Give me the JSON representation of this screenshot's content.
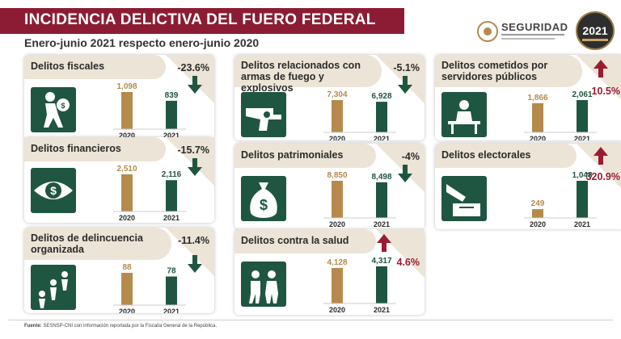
{
  "header": {
    "title": "INCIDENCIA DELICTIVA DEL FUERO FEDERAL",
    "subtitle": "Enero-junio 2021 respecto enero-junio 2020",
    "logo_name": "SEGURIDAD",
    "logo_year": "2021"
  },
  "colors": {
    "bar_2020": "#b58a4c",
    "bar_2021": "#1f5641",
    "title_bg": "#8c1c33",
    "arrow_down": "#1f5641",
    "arrow_up": "#9b1b30"
  },
  "footer": {
    "source_label": "Fuente:",
    "source_text": "SESNSP-CNI con información reportada por la Fiscalía General de la República."
  },
  "chart_data": [
    {
      "type": "bar",
      "title": "Delitos fiscales",
      "change": "-23.6%",
      "direction": "down",
      "icon": "thief-icon",
      "categories": [
        "2020",
        "2021"
      ],
      "values": [
        1098,
        839
      ],
      "labels": [
        "1,098",
        "839"
      ]
    },
    {
      "type": "bar",
      "title": "Delitos financieros",
      "change": "-15.7%",
      "direction": "down",
      "icon": "money-eye-icon",
      "categories": [
        "2020",
        "2021"
      ],
      "values": [
        2510,
        2116
      ],
      "labels": [
        "2,510",
        "2,116"
      ]
    },
    {
      "type": "bar",
      "title": "Delitos de delincuencia organizada",
      "change": "-11.4%",
      "direction": "down",
      "icon": "organized-crime-icon",
      "categories": [
        "2020",
        "2021"
      ],
      "values": [
        88,
        78
      ],
      "labels": [
        "88",
        "78"
      ]
    },
    {
      "type": "bar",
      "title": "Delitos relacionados con armas de fuego y explosivos",
      "change": "-5.1%",
      "direction": "down",
      "icon": "revolver-icon",
      "categories": [
        "2020",
        "2021"
      ],
      "values": [
        7304,
        6928
      ],
      "labels": [
        "7,304",
        "6,928"
      ]
    },
    {
      "type": "bar",
      "title": "Delitos patrimoniales",
      "change": "-4%",
      "direction": "down",
      "icon": "money-bag-icon",
      "categories": [
        "2020",
        "2021"
      ],
      "values": [
        8850,
        8498
      ],
      "labels": [
        "8,850",
        "8,498"
      ]
    },
    {
      "type": "bar",
      "title": "Delitos contra la salud",
      "change": "4.6%",
      "direction": "up",
      "icon": "health-icon",
      "categories": [
        "2020",
        "2021"
      ],
      "values": [
        4128,
        4317
      ],
      "labels": [
        "4,128",
        "4,317"
      ]
    },
    {
      "type": "bar",
      "title": "Delitos cometidos por servidores públicos",
      "change": "10.5%",
      "direction": "up",
      "icon": "public-servant-icon",
      "categories": [
        "2020",
        "2021"
      ],
      "values": [
        1866,
        2061
      ],
      "labels": [
        "1,866",
        "2,061"
      ]
    },
    {
      "type": "bar",
      "title": "Delitos electorales",
      "change": "320.9%",
      "direction": "up",
      "icon": "ballot-box-icon",
      "categories": [
        "2020",
        "2021"
      ],
      "values": [
        249,
        1048
      ],
      "labels": [
        "249",
        "1,048"
      ]
    }
  ]
}
